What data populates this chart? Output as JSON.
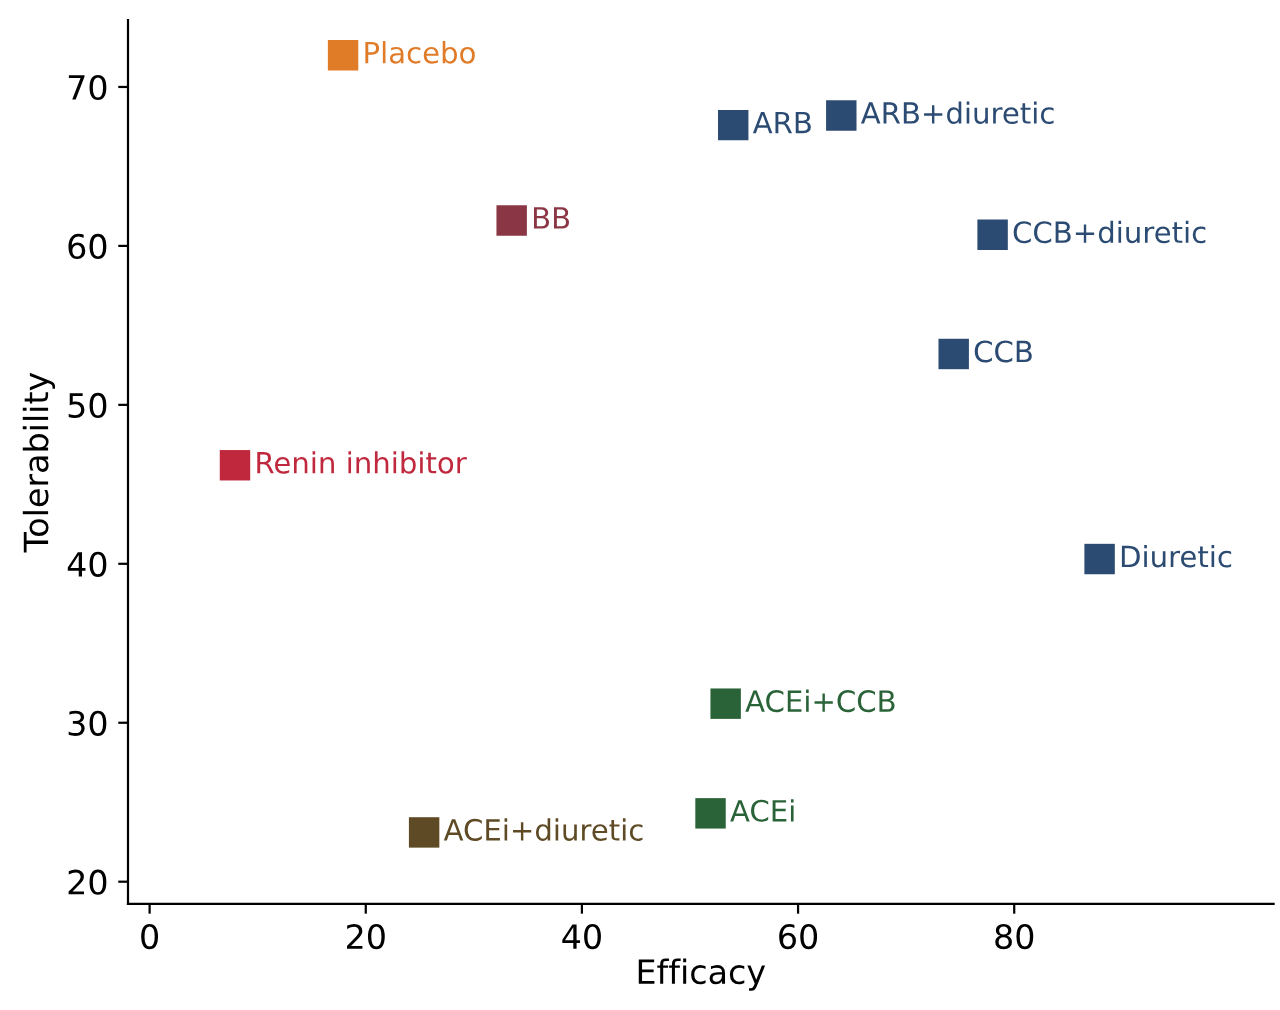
{
  "chart_data": {
    "type": "scatter",
    "xlabel": "Efficacy",
    "ylabel": "Tolerability",
    "xlim": [
      -2,
      104
    ],
    "ylim": [
      18.6,
      74.2
    ],
    "xticks": [
      0,
      20,
      40,
      60,
      80
    ],
    "yticks": [
      20,
      30,
      40,
      50,
      60,
      70
    ],
    "grid": false,
    "legend": false,
    "marker": "square",
    "series": [
      {
        "name": "Placebo",
        "color": "#e07b28",
        "x": [
          17.9
        ],
        "values": [
          72.0
        ]
      },
      {
        "name": "ARB",
        "color": "#2b4b72",
        "x": [
          54.0
        ],
        "values": [
          67.6
        ]
      },
      {
        "name": "ARB+diuretic",
        "color": "#2b4b72",
        "x": [
          64.0
        ],
        "values": [
          68.2
        ]
      },
      {
        "name": "BB",
        "color": "#8a3644",
        "x": [
          33.5
        ],
        "values": [
          61.6
        ]
      },
      {
        "name": "CCB+diuretic",
        "color": "#2b4b72",
        "x": [
          78.0
        ],
        "values": [
          60.7
        ]
      },
      {
        "name": "CCB",
        "color": "#2b4b72",
        "x": [
          74.4
        ],
        "values": [
          53.2
        ]
      },
      {
        "name": "Renin inhibitor",
        "color": "#c0283e",
        "x": [
          7.9
        ],
        "values": [
          46.2
        ]
      },
      {
        "name": "Diuretic",
        "color": "#2b4b72",
        "x": [
          87.9
        ],
        "values": [
          40.3
        ]
      },
      {
        "name": "ACEi+CCB",
        "color": "#2a6338",
        "x": [
          53.3
        ],
        "values": [
          31.2
        ]
      },
      {
        "name": "ACEi",
        "color": "#2a6338",
        "x": [
          51.9
        ],
        "values": [
          24.3
        ]
      },
      {
        "name": "ACEi+diuretic",
        "color": "#5e4a24",
        "x": [
          25.4
        ],
        "values": [
          23.1
        ]
      }
    ]
  }
}
